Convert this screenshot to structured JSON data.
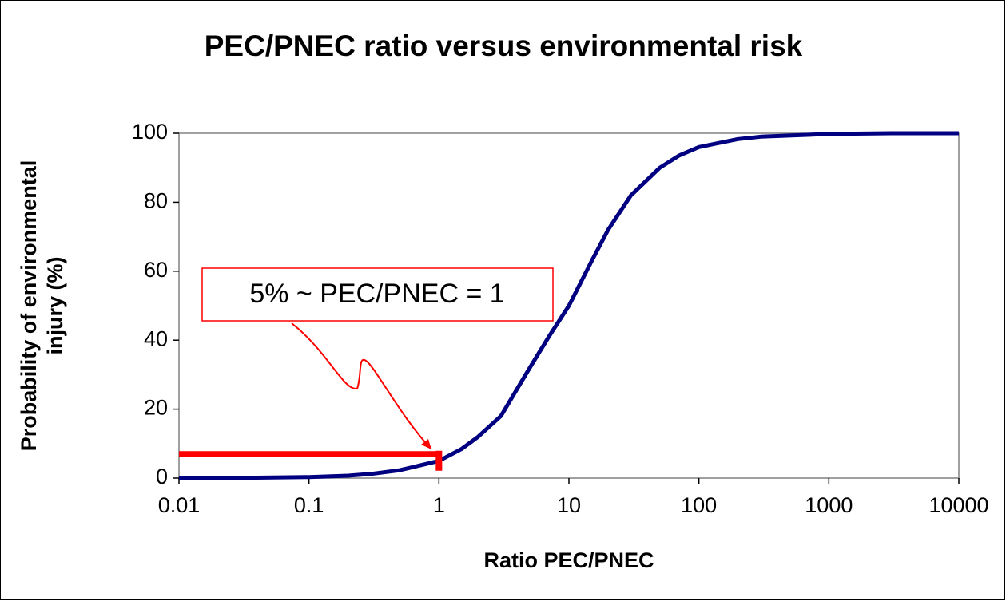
{
  "chart_data": {
    "type": "line",
    "title": "PEC/PNEC ratio versus environmental risk",
    "xlabel": "Ratio PEC/PNEC",
    "ylabel": [
      "Probability of environmental",
      "injury (%)"
    ],
    "xscale": "log",
    "xlim": [
      0.01,
      10000
    ],
    "xticks": [
      0.01,
      0.1,
      1,
      10,
      100,
      1000,
      10000
    ],
    "ylim": [
      0,
      100
    ],
    "yticks": [
      0,
      20,
      40,
      60,
      80,
      100
    ],
    "grid": false,
    "series": [
      {
        "color": "#000080",
        "x": [
          0.01,
          0.03,
          0.1,
          0.2,
          0.3,
          0.5,
          1,
          1.5,
          2,
          3,
          5,
          7,
          10,
          15,
          20,
          30,
          50,
          70,
          100,
          200,
          300,
          1000,
          3000,
          10000
        ],
        "values": [
          0,
          0.05,
          0.3,
          0.7,
          1.2,
          2.3,
          5,
          8.5,
          12,
          18,
          32,
          41,
          50,
          63,
          72,
          82,
          90,
          93.5,
          96,
          98.3,
          99,
          99.8,
          100,
          100
        ]
      }
    ],
    "annotation": {
      "text": "5% ~ PEC/PNEC = 1",
      "color": "#ff0000",
      "y": 7,
      "x": [
        0.01,
        1
      ]
    }
  }
}
